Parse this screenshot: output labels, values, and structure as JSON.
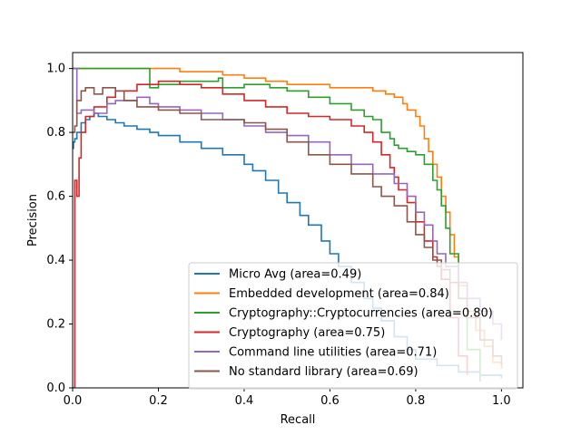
{
  "chart_data": {
    "type": "line",
    "title": "",
    "xlabel": "Recall",
    "ylabel": "Precision",
    "xlim": [
      0.0,
      1.05
    ],
    "ylim": [
      0.0,
      1.05
    ],
    "xticks": [
      "0.0",
      "0.2",
      "0.4",
      "0.6",
      "0.8",
      "1.0"
    ],
    "yticks": [
      "0.0",
      "0.2",
      "0.4",
      "0.6",
      "0.8",
      "1.0"
    ],
    "grid": false,
    "legend_position": "lower-right",
    "series": [
      {
        "name": "Micro Avg (area=0.49)",
        "color": "#1f77b4",
        "x": [
          0.0,
          0.002,
          0.005,
          0.01,
          0.02,
          0.03,
          0.04,
          0.05,
          0.06,
          0.08,
          0.1,
          0.12,
          0.15,
          0.18,
          0.2,
          0.25,
          0.3,
          0.35,
          0.4,
          0.42,
          0.45,
          0.48,
          0.5,
          0.53,
          0.55,
          0.58,
          0.6,
          0.62,
          0.65,
          0.68,
          0.7,
          0.72,
          0.75,
          0.78,
          0.8,
          0.85,
          0.9,
          0.95,
          1.0
        ],
        "y": [
          0.75,
          0.77,
          0.78,
          0.8,
          0.83,
          0.84,
          0.85,
          0.86,
          0.85,
          0.84,
          0.83,
          0.82,
          0.81,
          0.8,
          0.79,
          0.77,
          0.75,
          0.73,
          0.7,
          0.68,
          0.65,
          0.61,
          0.58,
          0.54,
          0.51,
          0.46,
          0.42,
          0.38,
          0.33,
          0.28,
          0.25,
          0.21,
          0.16,
          0.12,
          0.09,
          0.07,
          0.05,
          0.04,
          0.03
        ]
      },
      {
        "name": "Embedded development (area=0.84)",
        "color": "#ff7f0e",
        "x": [
          0.0,
          0.01,
          0.05,
          0.1,
          0.15,
          0.2,
          0.25,
          0.3,
          0.35,
          0.4,
          0.45,
          0.5,
          0.55,
          0.6,
          0.65,
          0.7,
          0.72,
          0.73,
          0.75,
          0.77,
          0.78,
          0.8,
          0.81,
          0.82,
          0.83,
          0.84,
          0.85,
          0.86,
          0.87,
          0.88,
          0.89,
          0.9,
          0.92,
          0.94,
          0.96,
          0.98,
          1.0
        ],
        "y": [
          1.0,
          1.0,
          1.0,
          1.0,
          1.0,
          1.0,
          0.99,
          0.99,
          0.98,
          0.97,
          0.96,
          0.95,
          0.95,
          0.94,
          0.94,
          0.93,
          0.93,
          0.92,
          0.91,
          0.89,
          0.87,
          0.85,
          0.82,
          0.78,
          0.74,
          0.7,
          0.66,
          0.6,
          0.55,
          0.48,
          0.41,
          0.32,
          0.24,
          0.18,
          0.13,
          0.08,
          0.06
        ]
      },
      {
        "name": "Cryptography::Cryptocurrencies (area=0.80)",
        "color": "#2ca02c",
        "x": [
          0.0,
          0.01,
          0.05,
          0.1,
          0.15,
          0.17,
          0.18,
          0.2,
          0.25,
          0.3,
          0.34,
          0.35,
          0.4,
          0.45,
          0.46,
          0.5,
          0.55,
          0.6,
          0.65,
          0.68,
          0.7,
          0.72,
          0.74,
          0.75,
          0.76,
          0.78,
          0.8,
          0.82,
          0.84,
          0.85,
          0.86,
          0.87,
          0.88,
          0.9,
          0.92,
          0.95
        ],
        "y": [
          1.0,
          1.0,
          1.0,
          1.0,
          1.0,
          1.0,
          0.94,
          0.95,
          0.96,
          0.96,
          0.97,
          0.94,
          0.95,
          0.95,
          0.94,
          0.93,
          0.91,
          0.89,
          0.87,
          0.85,
          0.84,
          0.8,
          0.78,
          0.76,
          0.75,
          0.74,
          0.73,
          0.7,
          0.65,
          0.62,
          0.57,
          0.5,
          0.42,
          0.28,
          0.12,
          0.02
        ]
      },
      {
        "name": "Cryptography (area=0.75)",
        "color": "#d62728",
        "x": [
          0.0,
          0.005,
          0.01,
          0.015,
          0.02,
          0.03,
          0.05,
          0.08,
          0.1,
          0.15,
          0.2,
          0.25,
          0.3,
          0.35,
          0.4,
          0.45,
          0.5,
          0.55,
          0.6,
          0.65,
          0.68,
          0.7,
          0.72,
          0.74,
          0.75,
          0.76,
          0.78,
          0.8,
          0.82,
          0.84,
          0.85,
          0.86,
          0.88,
          0.9,
          0.92
        ],
        "y": [
          0.0,
          0.65,
          0.6,
          0.72,
          0.8,
          0.85,
          0.88,
          0.91,
          0.93,
          0.95,
          0.96,
          0.95,
          0.94,
          0.92,
          0.9,
          0.88,
          0.86,
          0.85,
          0.84,
          0.82,
          0.8,
          0.77,
          0.73,
          0.69,
          0.66,
          0.62,
          0.58,
          0.52,
          0.46,
          0.41,
          0.38,
          0.34,
          0.22,
          0.1,
          0.04
        ]
      },
      {
        "name": "Command line utilities (area=0.71)",
        "color": "#9467bd",
        "x": [
          0.0,
          0.005,
          0.01,
          0.02,
          0.05,
          0.08,
          0.1,
          0.15,
          0.18,
          0.2,
          0.25,
          0.3,
          0.35,
          0.4,
          0.45,
          0.5,
          0.55,
          0.6,
          0.65,
          0.7,
          0.75,
          0.78,
          0.8,
          0.82,
          0.84,
          0.85,
          0.87,
          0.9,
          0.92,
          0.95,
          0.98,
          1.0
        ],
        "y": [
          1.0,
          1.0,
          0.86,
          0.87,
          0.86,
          0.89,
          0.9,
          0.91,
          0.89,
          0.88,
          0.87,
          0.86,
          0.84,
          0.82,
          0.8,
          0.79,
          0.77,
          0.73,
          0.7,
          0.67,
          0.64,
          0.6,
          0.55,
          0.51,
          0.46,
          0.42,
          0.38,
          0.33,
          0.28,
          0.24,
          0.2,
          0.15
        ]
      },
      {
        "name": "No standard library (area=0.69)",
        "color": "#8c564b",
        "x": [
          0.0,
          0.005,
          0.01,
          0.02,
          0.03,
          0.05,
          0.07,
          0.1,
          0.12,
          0.15,
          0.2,
          0.25,
          0.3,
          0.35,
          0.4,
          0.45,
          0.5,
          0.55,
          0.6,
          0.65,
          0.7,
          0.72,
          0.75,
          0.78,
          0.8,
          0.82,
          0.84,
          0.86,
          0.88,
          0.9,
          0.92,
          0.95,
          0.98,
          1.0
        ],
        "y": [
          0.8,
          0.82,
          0.9,
          0.93,
          0.94,
          0.92,
          0.94,
          0.93,
          0.9,
          0.88,
          0.87,
          0.86,
          0.84,
          0.84,
          0.83,
          0.81,
          0.77,
          0.73,
          0.7,
          0.67,
          0.63,
          0.6,
          0.57,
          0.52,
          0.48,
          0.44,
          0.4,
          0.37,
          0.33,
          0.28,
          0.22,
          0.15,
          0.1,
          0.07
        ]
      }
    ]
  }
}
